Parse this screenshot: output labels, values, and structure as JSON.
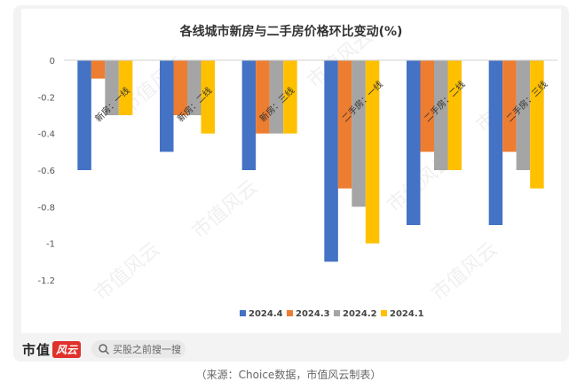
{
  "caption": "（来源：Choice数据，市值风云制表）",
  "brand": {
    "name": "市值",
    "badge": "风云",
    "search_placeholder": "买股之前搜一搜"
  },
  "watermark": "市值风云",
  "colors": {
    "accent": "#e0312b",
    "series": [
      "#4472c4",
      "#ed7d31",
      "#a5a5a5",
      "#ffc000"
    ]
  },
  "chart_data": {
    "type": "bar",
    "title": "各线城市新房与二手房价格环比变动(%)",
    "categories": [
      "新房：一线",
      "新房：二线",
      "新房：三线",
      "二手房：一线",
      "二手房：二线",
      "二手房：三线"
    ],
    "series": [
      {
        "name": "2024.4",
        "values": [
          -0.6,
          -0.5,
          -0.6,
          -1.1,
          -0.9,
          -0.9
        ]
      },
      {
        "name": "2024.3",
        "values": [
          -0.1,
          -0.3,
          -0.4,
          -0.7,
          -0.5,
          -0.5
        ]
      },
      {
        "name": "2024.2",
        "values": [
          -0.3,
          -0.3,
          -0.4,
          -0.8,
          -0.6,
          -0.6
        ]
      },
      {
        "name": "2024.1",
        "values": [
          -0.3,
          -0.4,
          -0.4,
          -1.0,
          -0.6,
          -0.7
        ]
      }
    ],
    "yticks": [
      "0",
      "-0.2",
      "-0.4",
      "-0.6",
      "-0.8",
      "-1",
      "-1.2"
    ],
    "ylim": [
      -1.2,
      0
    ],
    "legend_position": "bottom",
    "grid": false
  }
}
